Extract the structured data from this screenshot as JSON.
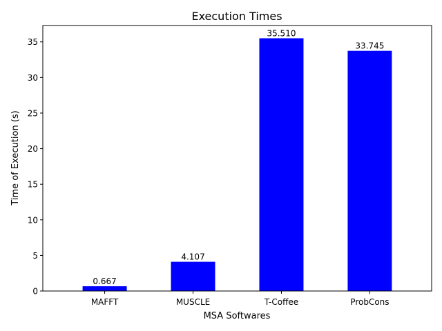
{
  "chart_data": {
    "type": "bar",
    "title": "Execution Times",
    "xlabel": "MSA Softwares",
    "ylabel": "Time of Execution (s)",
    "categories": [
      "MAFFT",
      "MUSCLE",
      "T-Coffee",
      "ProbCons"
    ],
    "values": [
      0.667,
      4.107,
      35.51,
      33.745
    ],
    "value_labels": [
      "0.667",
      "4.107",
      "35.510",
      "33.745"
    ],
    "ylim": [
      0,
      37.3
    ],
    "yticks": [
      0,
      5,
      10,
      15,
      20,
      25,
      30,
      35
    ],
    "bar_color": "#0000ff",
    "grid": false,
    "legend": "none"
  }
}
